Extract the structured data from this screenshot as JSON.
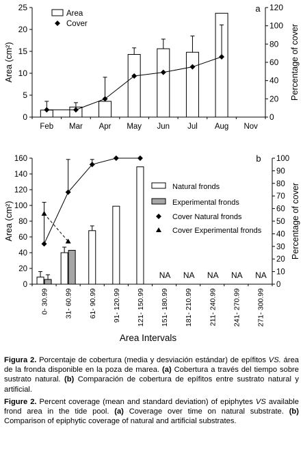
{
  "chart_data": [
    {
      "type": "bar",
      "panel_label": "a",
      "categories": [
        "Feb",
        "Mar",
        "Apr",
        "May",
        "Jun",
        "Jul",
        "Aug",
        "Nov"
      ],
      "ylabel": "Area (cm²)",
      "y2label": "Percentage of cover",
      "ylim": [
        0,
        25
      ],
      "y2lim": [
        0,
        120
      ],
      "yticks": [
        "0",
        "5",
        "10",
        "15",
        "20",
        "25"
      ],
      "y2ticks": [
        "0",
        "20",
        "40",
        "60",
        "80",
        "100",
        "120"
      ],
      "legend": {
        "placement": "top-left",
        "entries": [
          "Area",
          "Cover"
        ]
      },
      "series": [
        {
          "name": "Area",
          "kind": "bar",
          "axis": "left",
          "values": [
            1.6,
            2.3,
            3.6,
            14.3,
            15.6,
            14.8,
            23.7,
            null
          ],
          "errors": [
            2.0,
            1.0,
            5.5,
            1.5,
            2.2,
            3.7,
            0
          ]
        },
        {
          "name": "Cover",
          "kind": "line",
          "axis": "right",
          "values": [
            8,
            8,
            20,
            45,
            49,
            55,
            66,
            null
          ],
          "errors": [
            0,
            0,
            0,
            0,
            0,
            0,
            35
          ]
        }
      ]
    },
    {
      "type": "bar",
      "panel_label": "b",
      "categories": [
        "0- 30.99",
        "31- 60.99",
        "61- 90.99",
        "91- 120.99",
        "121- 150.99",
        "151- 180.99",
        "181- 210.99",
        "211- 240.99",
        "241- 270.99",
        "271- 300.99"
      ],
      "xlabel": "Area Intervals",
      "ylabel": "Area (cm²)",
      "y2label": "Percentage of cover",
      "ylim": [
        0,
        160
      ],
      "y2lim": [
        0,
        100
      ],
      "yticks": [
        "0",
        "20",
        "40",
        "60",
        "80",
        "100",
        "120",
        "140",
        "160"
      ],
      "y2ticks": [
        "0",
        "10",
        "20",
        "30",
        "40",
        "50",
        "60",
        "70",
        "80",
        "90",
        "100"
      ],
      "na_label": "NA",
      "na_categories": [
        5,
        6,
        7,
        8,
        9
      ],
      "legend": {
        "placement": "right",
        "entries": [
          "Natural fronds",
          "Experimental fronds",
          "Cover Natural fronds",
          "Cover Experimental fronds"
        ]
      },
      "series": [
        {
          "name": "Natural fronds",
          "kind": "bar",
          "axis": "left",
          "color": "#ffffff",
          "values": [
            9,
            40,
            68,
            99,
            149,
            null,
            null,
            null,
            null,
            null
          ],
          "errors": [
            7,
            7,
            6,
            0,
            0
          ]
        },
        {
          "name": "Experimental fronds",
          "kind": "bar",
          "axis": "left",
          "color": "#a6a6a6",
          "values": [
            6,
            43,
            null,
            null,
            null,
            null,
            null,
            null,
            null,
            null
          ],
          "errors": [
            6,
            0
          ]
        },
        {
          "name": "Cover Natural fronds",
          "kind": "line",
          "axis": "right",
          "marker": "diamond",
          "values": [
            32,
            73,
            95,
            100,
            100,
            null,
            null,
            null,
            null,
            null
          ],
          "errors": [
            33,
            26,
            4,
            0,
            0
          ]
        },
        {
          "name": "Cover Experimental fronds",
          "kind": "line",
          "axis": "right",
          "marker": "triangle",
          "dashed": true,
          "values": [
            56,
            34,
            null,
            null,
            null,
            null,
            null,
            null,
            null,
            null
          ],
          "errors": [
            0,
            0
          ]
        }
      ]
    }
  ],
  "caption_es": {
    "label": "Figura 2.",
    "before_vs": " Porcentaje de cobertura (media y desviación estándar) de epífitos ",
    "vs": "VS.",
    "after_vs": " área de la fronda disponible en la poza de marea. ",
    "a_label": "(a)",
    "a_text": " Cobertura a través del tiempo sobre sustrato natural. ",
    "b_label": "(b)",
    "b_text": " Comparación de cobertura de epífitos entre sustrato natural y artificial."
  },
  "caption_en": {
    "label": "Figure 2.",
    "before_vs": " Percent coverage (mean and standard deviation) of epiphytes ",
    "vs": "VS",
    "after_vs": " available frond area in the tide pool. ",
    "a_label": "(a)",
    "a_text": " Coverage over time on natural substrate. ",
    "b_label": "(b)",
    "b_text": " Comparison of epiphytic coverage of natural and artificial substrates."
  }
}
